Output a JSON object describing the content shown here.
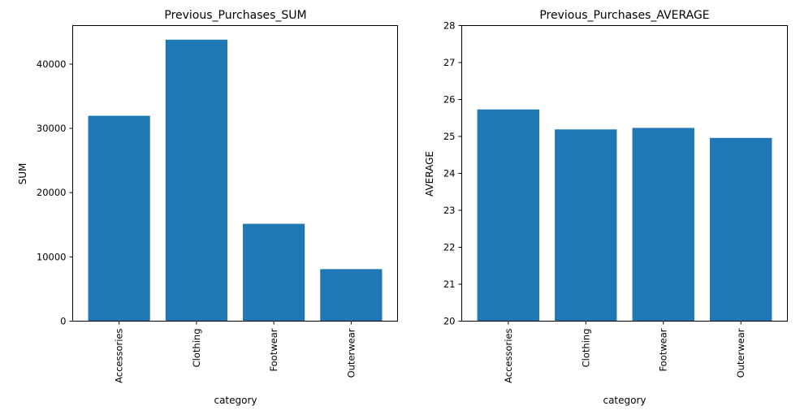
{
  "chart_data": [
    {
      "type": "bar",
      "title": "Previous_Purchases_SUM",
      "xlabel": "category",
      "ylabel": "SUM",
      "categories": [
        "Accessories",
        "Clothing",
        "Footwear",
        "Outerwear"
      ],
      "values": [
        31960,
        43810,
        15150,
        8100
      ],
      "ylim": [
        0,
        46000
      ],
      "yticks": [
        0,
        10000,
        20000,
        30000,
        40000
      ],
      "bar_color": "#1f77b4",
      "grid": false
    },
    {
      "type": "bar",
      "title": "Previous_Purchases_AVERAGE",
      "xlabel": "category",
      "ylabel": "AVERAGE",
      "categories": [
        "Accessories",
        "Clothing",
        "Footwear",
        "Outerwear"
      ],
      "values": [
        25.73,
        25.19,
        25.23,
        24.96
      ],
      "ylim": [
        20,
        28
      ],
      "yticks": [
        20,
        21,
        22,
        23,
        24,
        25,
        26,
        27,
        28
      ],
      "bar_color": "#1f77b4",
      "grid": false
    }
  ]
}
